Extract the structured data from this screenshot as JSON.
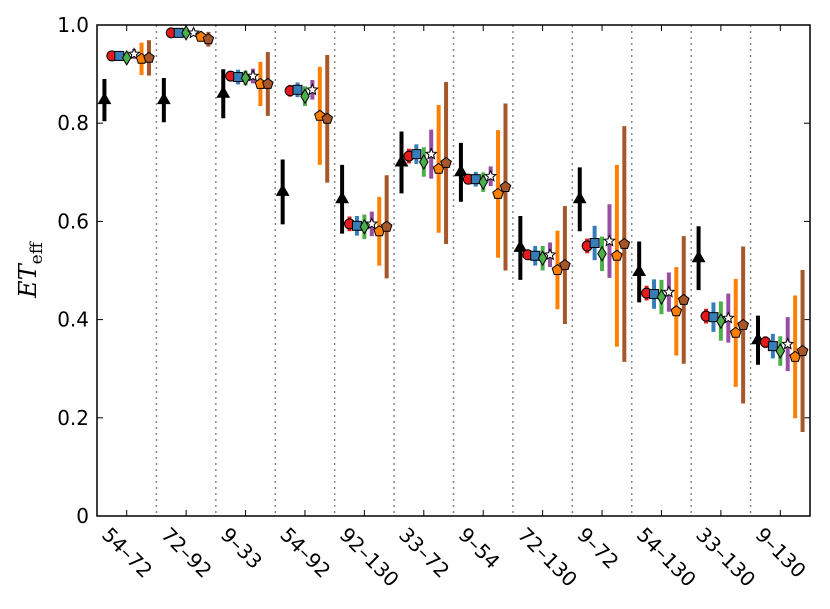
{
  "chart_data": {
    "type": "errorbar",
    "ylabel_main": "ET",
    "ylabel_sub": "eff",
    "categories": [
      "54–72",
      "72–92",
      "9–33",
      "54–92",
      "92–130",
      "33–72",
      "9–54",
      "72–130",
      "9–72",
      "54–130",
      "33–130",
      "9–130"
    ],
    "ylim": [
      0,
      1
    ],
    "yticks": [
      0,
      0.2,
      0.4,
      0.6,
      0.8,
      {
        "value": 1,
        "label": "1.0"
      }
    ],
    "series": [
      {
        "color": "#000000",
        "marker": "triangle",
        "values": [
          0.847,
          0.847,
          0.86,
          0.66,
          0.645,
          0.72,
          0.7,
          0.546,
          0.645,
          0.497,
          0.525,
          0.358
        ],
        "errors": [
          0.043,
          0.045,
          0.05,
          0.066,
          0.07,
          0.063,
          0.06,
          0.065,
          0.065,
          0.062,
          0.065,
          0.05
        ]
      },
      {
        "color": "#e41a1c",
        "marker": "circle",
        "values": [
          0.937,
          0.984,
          0.896,
          0.866,
          0.595,
          0.733,
          0.686,
          0.532,
          0.55,
          0.454,
          0.407,
          0.354
        ],
        "errors": [
          0.005,
          0.005,
          0.008,
          0.012,
          0.015,
          0.015,
          0.01,
          0.01,
          0.015,
          0.015,
          0.015,
          0.012
        ]
      },
      {
        "color": "#377eb8",
        "marker": "square",
        "values": [
          0.937,
          0.984,
          0.894,
          0.868,
          0.591,
          0.737,
          0.686,
          0.53,
          0.556,
          0.452,
          0.405,
          0.346
        ],
        "errors": [
          0.01,
          0.005,
          0.015,
          0.015,
          0.02,
          0.02,
          0.015,
          0.02,
          0.035,
          0.03,
          0.03,
          0.025
        ]
      },
      {
        "color": "#4daf4a",
        "marker": "diamond",
        "values": [
          0.933,
          0.984,
          0.892,
          0.855,
          0.589,
          0.721,
          0.68,
          0.525,
          0.534,
          0.446,
          0.397,
          0.336
        ],
        "errors": [
          0.01,
          0.005,
          0.015,
          0.02,
          0.025,
          0.03,
          0.02,
          0.025,
          0.035,
          0.035,
          0.04,
          0.03
        ]
      },
      {
        "color": "#984ea3",
        "marker": "star",
        "values": [
          0.941,
          0.984,
          0.896,
          0.868,
          0.595,
          0.737,
          0.692,
          0.532,
          0.56,
          0.456,
          0.403,
          0.35
        ],
        "errors": [
          0.01,
          0.005,
          0.015,
          0.02,
          0.025,
          0.05,
          0.02,
          0.025,
          0.075,
          0.04,
          0.05,
          0.055
        ]
      },
      {
        "color": "#ff7f00",
        "marker": "pentagon",
        "values": [
          0.931,
          0.976,
          0.88,
          0.815,
          0.58,
          0.707,
          0.656,
          0.501,
          0.53,
          0.417,
          0.373,
          0.324
        ],
        "errors": [
          0.033,
          0.01,
          0.045,
          0.1,
          0.07,
          0.13,
          0.13,
          0.08,
          0.185,
          0.09,
          0.11,
          0.125
        ]
      },
      {
        "color": "#a65628",
        "marker": "pentagon",
        "values": [
          0.933,
          0.971,
          0.88,
          0.809,
          0.589,
          0.719,
          0.67,
          0.511,
          0.554,
          0.44,
          0.389,
          0.336
        ],
        "errors": [
          0.036,
          0.015,
          0.065,
          0.13,
          0.105,
          0.165,
          0.17,
          0.12,
          0.24,
          0.13,
          0.16,
          0.165
        ]
      }
    ]
  }
}
